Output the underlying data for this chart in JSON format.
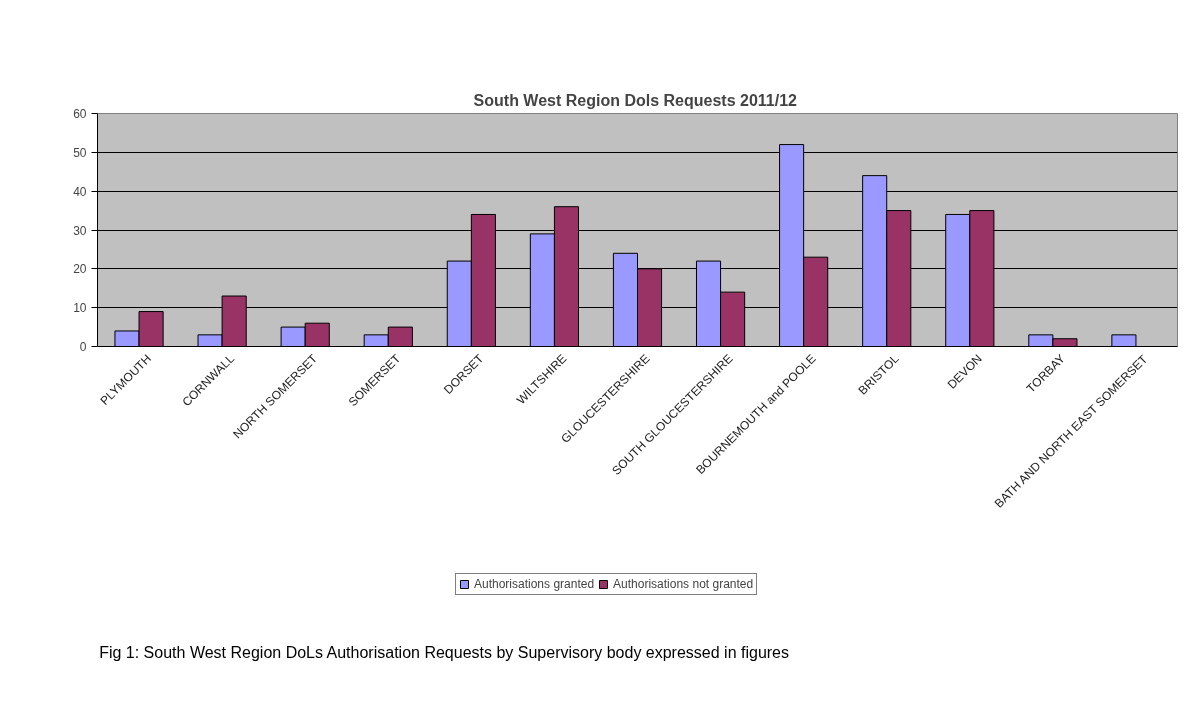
{
  "chart_data": {
    "type": "bar",
    "title": "South West Region Dols Requests  2011/12",
    "categories": [
      "PLYMOUTH",
      "CORNWALL",
      "NORTH SOMERSET",
      "SOMERSET",
      "DORSET",
      "WILTSHIRE",
      "GLOUCESTERSHIRE",
      "SOUTH GLOUCESTERSHIRE",
      "BOURNEMOUTH and POOLE",
      "BRISTOL",
      "DEVON",
      "TORBAY",
      "BATH AND NORTH EAST SOMERSET"
    ],
    "series": [
      {
        "name": "Authorisations granted",
        "color": "#9999ff",
        "values": [
          4,
          3,
          5,
          3,
          22,
          29,
          24,
          22,
          52,
          44,
          34,
          3,
          3
        ]
      },
      {
        "name": "Authorisations not granted",
        "color": "#993366",
        "values": [
          9,
          13,
          6,
          5,
          34,
          36,
          20,
          14,
          23,
          35,
          35,
          2,
          null
        ]
      }
    ],
    "ylim": [
      0,
      60
    ],
    "yticks": [
      0,
      10,
      20,
      30,
      40,
      50,
      60
    ],
    "grid": "y",
    "legend": "bottom",
    "annotations": [
      "Fig 1:  South West Region  DoLs Authorisation Requests by Supervisory body expressed in figures"
    ]
  }
}
